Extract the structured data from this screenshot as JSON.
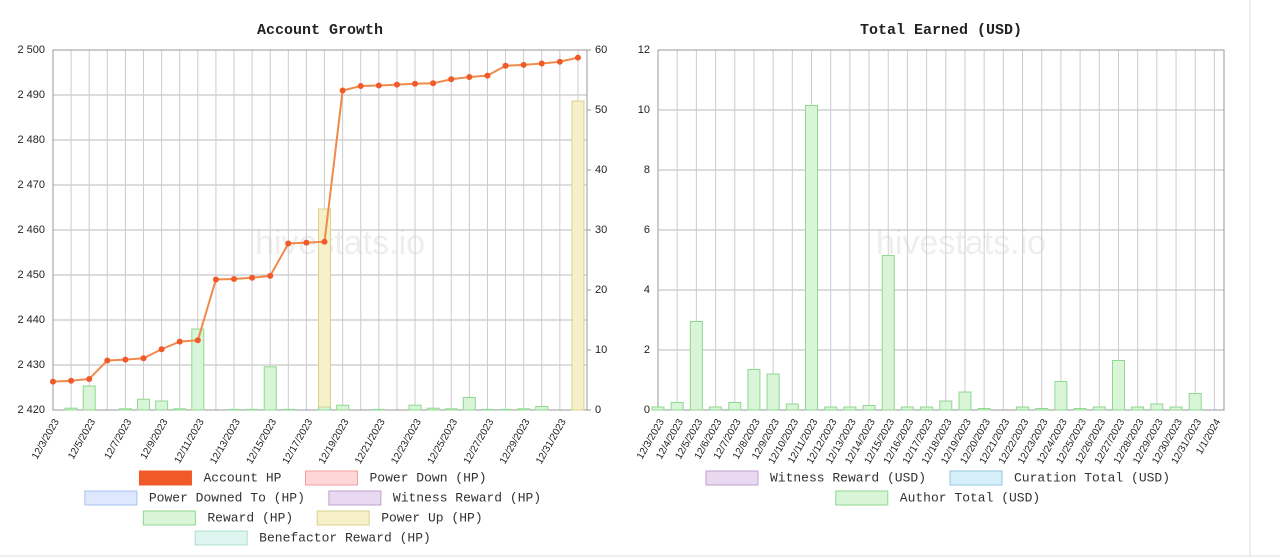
{
  "chart_data": [
    {
      "type": "combo",
      "title": "Account Growth",
      "watermark": "hivestats.io",
      "categories": [
        "12/3/2023",
        null,
        "12/5/2023",
        null,
        "12/7/2023",
        null,
        "12/9/2023",
        null,
        "12/11/2023",
        null,
        "12/13/2023",
        null,
        "12/15/2023",
        null,
        "12/17/2023",
        null,
        "12/19/2023",
        null,
        "12/21/2023",
        null,
        "12/23/2023",
        null,
        "12/25/2023",
        null,
        "12/27/2023",
        null,
        "12/29/2023",
        null,
        "12/31/2023",
        null
      ],
      "series": [
        {
          "name": "Account HP",
          "type": "line",
          "color": "#f05a28",
          "line_color": "#f08a4b",
          "values": [
            2426.3,
            2426.5,
            2426.9,
            2431.0,
            2431.2,
            2431.5,
            2433.5,
            2435.2,
            2435.5,
            2449.0,
            2449.1,
            2449.4,
            2449.8,
            2457.0,
            2457.2,
            2457.4,
            2491.0,
            2492.0,
            2492.1,
            2492.3,
            2492.5,
            2492.6,
            2493.5,
            2494.0,
            2494.3,
            2496.5,
            2496.7,
            2497.0,
            2497.4,
            2498.3
          ]
        },
        {
          "name": "Power Down (HP)",
          "color": "#ffd6d6",
          "border": "#f0a0a0"
        },
        {
          "name": "Power Downed To (HP)",
          "color": "#dde8ff",
          "border": "#a8c0f0"
        },
        {
          "name": "Witness Reward (HP)",
          "color": "#e8d8f0",
          "border": "#c0a0d0"
        },
        {
          "name": "Reward (HP)",
          "type": "bar",
          "axis": "y2",
          "color": "#d8f5d8",
          "border": "#8fd88f",
          "values": [
            0,
            0.3,
            4,
            0,
            0.2,
            1.8,
            1.5,
            0.2,
            13.5,
            0,
            0.1,
            0.1,
            7.2,
            0.1,
            0,
            0.5,
            0.8,
            0,
            0.1,
            0,
            0.8,
            0.3,
            0.2,
            2.1,
            0.1,
            0.1,
            0.2,
            0.6,
            0,
            0
          ]
        },
        {
          "name": "Power Up (HP)",
          "type": "bar",
          "axis": "y2",
          "color": "#f5f0c8",
          "border": "#d8d090",
          "values": [
            0,
            0,
            0,
            0,
            0,
            0,
            0,
            0,
            0,
            0,
            0,
            0,
            0,
            0,
            0,
            33,
            0,
            0,
            0,
            0,
            0,
            0,
            0,
            0,
            0,
            0,
            0,
            0,
            0,
            51.5
          ]
        },
        {
          "name": "Benefactor Reward (HP)",
          "color": "#dff5f0",
          "border": "#a8e0d0"
        }
      ],
      "ylim": [
        2420,
        2500
      ],
      "yticks": [
        {
          "value": 2420,
          "label": "2 420"
        },
        {
          "value": 2430,
          "label": "2 430"
        },
        {
          "value": 2440,
          "label": "2 440"
        },
        {
          "value": 2450,
          "label": "2 450"
        },
        {
          "value": 2460,
          "label": "2 460"
        },
        {
          "value": 2470,
          "label": "2 470"
        },
        {
          "value": 2480,
          "label": "2 480"
        },
        {
          "value": 2490,
          "label": "2 490"
        },
        {
          "value": 2500,
          "label": "2 500"
        }
      ],
      "y2lim": [
        0,
        60
      ],
      "y2ticks": [
        0,
        10,
        20,
        30,
        40,
        50,
        60
      ],
      "grid": true
    },
    {
      "type": "bar",
      "title": "Total Earned (USD)",
      "watermark": "hivestats.io",
      "categories": [
        "12/3/2023",
        "12/4/2023",
        "12/5/2023",
        "12/6/2023",
        "12/7/2023",
        "12/8/2023",
        "12/9/2023",
        "12/10/2023",
        "12/11/2023",
        "12/12/2023",
        "12/13/2023",
        "12/14/2023",
        "12/15/2023",
        "12/16/2023",
        "12/17/2023",
        "12/18/2023",
        "12/19/2023",
        "12/20/2023",
        "12/21/2023",
        "12/22/2023",
        "12/23/2023",
        "12/24/2023",
        "12/25/2023",
        "12/26/2023",
        "12/27/2023",
        "12/28/2023",
        "12/29/2023",
        "12/30/2023",
        "12/31/2023",
        "1/1/2024"
      ],
      "series": [
        {
          "name": "Witness Reward (USD)",
          "color": "#e8d8f0",
          "border": "#c0a0d0"
        },
        {
          "name": "Curation Total (USD)",
          "color": "#d6effa",
          "border": "#90c8e0"
        },
        {
          "name": "Author Total (USD)",
          "type": "bar",
          "color": "#d8f5d8",
          "border": "#8fd88f",
          "values": [
            0.1,
            0.25,
            2.95,
            0.1,
            0.25,
            1.35,
            1.2,
            0.2,
            10.15,
            0.1,
            0.1,
            0.15,
            5.15,
            0.1,
            0.1,
            0.3,
            0.6,
            0.05,
            0,
            0.1,
            0.05,
            0.95,
            0.05,
            0.1,
            1.65,
            0.1,
            0.2,
            0.1,
            0.55,
            0
          ]
        }
      ],
      "ylim": [
        0,
        12
      ],
      "yticks": [
        0,
        2,
        4,
        6,
        8,
        10,
        12
      ],
      "grid": true
    }
  ]
}
